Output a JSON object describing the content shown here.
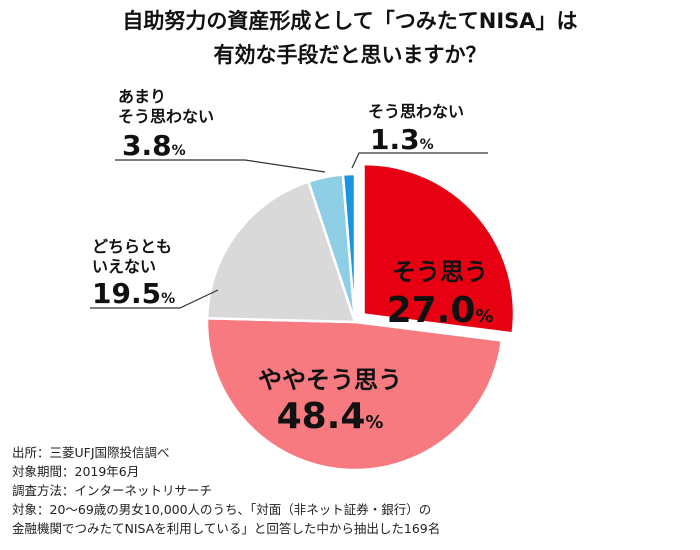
{
  "chart_data": {
    "type": "pie",
    "title": [
      "自助努力の資産形成として「つみたてNISA」は",
      "有効な手段だと思いますか？"
    ],
    "slices": [
      {
        "label": "そう思う",
        "value": 27.0,
        "color": "#e60012",
        "exploded": true
      },
      {
        "label": "ややそう思う",
        "value": 48.4,
        "color": "#f67a7f"
      },
      {
        "label": "どちらとも いえない",
        "value": 19.5,
        "color": "#d9d9d9"
      },
      {
        "label": "あまり そう思わない",
        "value": 3.8,
        "color": "#8fcfe6"
      },
      {
        "label": "そう思わない",
        "value": 1.3,
        "color": "#1b95e0"
      }
    ],
    "unit": "%"
  },
  "notes": [
    "出所：三菱UFJ国際投信調べ",
    "対象期間：2019年6月",
    "調査方法：インターネットリサーチ",
    "対象：20～69歳の男女10,000人のうち、「対面（非ネット証券・銀行）の",
    "金融機関でつみたてNISAを利用している」と回答した中から抽出した169名"
  ]
}
